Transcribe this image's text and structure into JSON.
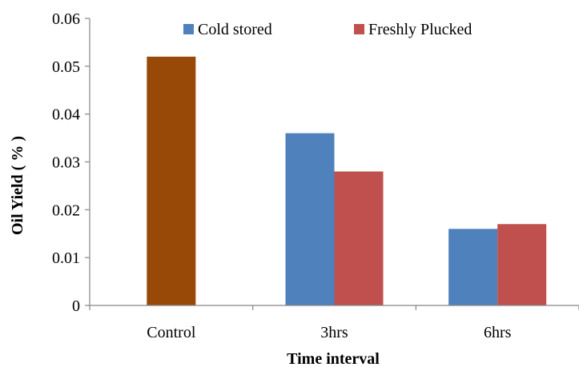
{
  "chart_data": {
    "type": "bar",
    "categories": [
      "Control",
      "3hrs",
      "6hrs"
    ],
    "series": [
      {
        "name": "",
        "color": "#984807",
        "values": [
          0.052,
          null,
          null
        ]
      },
      {
        "name": "Cold stored",
        "color": "#4F81BD",
        "values": [
          null,
          0.036,
          0.016
        ]
      },
      {
        "name": "Freshly Plucked",
        "color": "#C0504D",
        "values": [
          null,
          0.028,
          0.017
        ]
      }
    ],
    "title": "",
    "xlabel": "Time interval",
    "ylabel": "Oil Yield ( % )",
    "ylim": [
      0,
      0.06
    ],
    "yticks": [
      "0",
      "0.01",
      "0.02",
      "0.03",
      "0.04",
      "0.05",
      "0.06"
    ],
    "grid": false,
    "legend_position": "top"
  }
}
